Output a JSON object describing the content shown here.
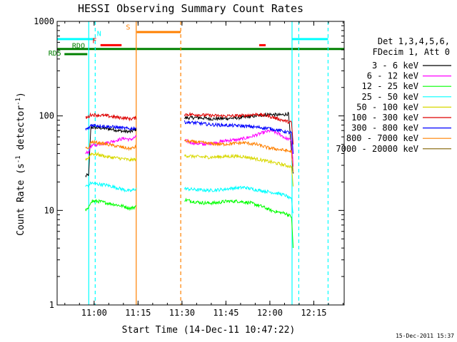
{
  "chart_data": {
    "type": "line",
    "title": "HESSI Observing Summary Count Rates",
    "xlabel": "Start Time (14-Dec-11 10:47:22)",
    "ylabel_main": "Count Rate (s",
    "ylabel_sup": "-1",
    "ylabel_mid": " detector",
    "ylabel_end": ")",
    "footer": "15-Dec-2011 15:37",
    "x_unit": "minutes after 10:47:22",
    "xlim": [
      0,
      98
    ],
    "ylim": [
      1,
      1000
    ],
    "yscale": "log",
    "x_ticks": [
      {
        "label": "11:00",
        "x": 12.63
      },
      {
        "label": "11:15",
        "x": 27.63
      },
      {
        "label": "11:30",
        "x": 42.63
      },
      {
        "label": "11:45",
        "x": 57.63
      },
      {
        "label": "12:00",
        "x": 72.63
      },
      {
        "label": "12:15",
        "x": 87.63
      }
    ],
    "y_ticks": [
      {
        "label": "1",
        "y": 1
      },
      {
        "label": "10",
        "y": 10
      },
      {
        "label": "100",
        "y": 100
      },
      {
        "label": "1000",
        "y": 1000
      }
    ],
    "legend": {
      "position": "right",
      "header": [
        "Det 1,3,4,5,6,",
        "FDecim 1, Att 0"
      ],
      "entries": [
        {
          "label": "3 - 6 keV",
          "color": "#000000"
        },
        {
          "label": "6 - 12 keV",
          "color": "#ff00ff"
        },
        {
          "label": "12 - 25 keV",
          "color": "#00ff00"
        },
        {
          "label": "25 - 50 keV",
          "color": "#00ffff"
        },
        {
          "label": "50 - 100 keV",
          "color": "#d8d800"
        },
        {
          "label": "100 - 300 keV",
          "color": "#dd0000"
        },
        {
          "label": "300 - 800 keV",
          "color": "#0000ff"
        },
        {
          "label": "800 - 7000 keV",
          "color": "#ff8000"
        },
        {
          "label": "7000 - 20000 keV",
          "color": "#806000"
        }
      ]
    },
    "segments": [
      [
        9.7,
        27.0
      ],
      [
        43.5,
        80.6
      ]
    ],
    "series": [
      {
        "name": "3 - 6 keV",
        "color": "#000000",
        "points": [
          [
            9.7,
            23
          ],
          [
            10.8,
            24
          ],
          [
            11.5,
            76
          ],
          [
            13,
            75
          ],
          [
            16,
            74
          ],
          [
            19,
            72
          ],
          [
            22,
            69
          ],
          [
            25,
            68
          ],
          [
            27,
            72
          ],
          [
            43.5,
            95
          ],
          [
            48,
            96
          ],
          [
            53,
            93
          ],
          [
            58,
            94
          ],
          [
            63,
            96
          ],
          [
            68,
            100
          ],
          [
            72,
            104
          ],
          [
            76,
            102
          ],
          [
            79,
            105
          ],
          [
            80.6,
            24
          ]
        ]
      },
      {
        "name": "6 - 12 keV",
        "color": "#ff00ff",
        "points": [
          [
            9.7,
            40
          ],
          [
            10.8,
            42
          ],
          [
            11.5,
            48
          ],
          [
            14,
            50
          ],
          [
            17,
            52
          ],
          [
            20,
            55
          ],
          [
            23,
            58
          ],
          [
            25,
            56
          ],
          [
            27,
            60
          ],
          [
            43.5,
            55
          ],
          [
            46,
            52
          ],
          [
            50,
            50
          ],
          [
            54,
            52
          ],
          [
            58,
            55
          ],
          [
            62,
            56
          ],
          [
            66,
            60
          ],
          [
            70,
            66
          ],
          [
            73,
            70
          ],
          [
            76,
            64
          ],
          [
            78,
            58
          ],
          [
            80,
            55
          ],
          [
            80.6,
            30
          ]
        ]
      },
      {
        "name": "12 - 25 keV",
        "color": "#00ff00",
        "points": [
          [
            9.7,
            10
          ],
          [
            10.8,
            10.5
          ],
          [
            11.5,
            12.5
          ],
          [
            14,
            12.5
          ],
          [
            17,
            12
          ],
          [
            20,
            11.5
          ],
          [
            23,
            11
          ],
          [
            25,
            10.5
          ],
          [
            27,
            11
          ],
          [
            43.5,
            13
          ],
          [
            46,
            12.5
          ],
          [
            50,
            12
          ],
          [
            54,
            12
          ],
          [
            58,
            12.5
          ],
          [
            62,
            12.5
          ],
          [
            66,
            12
          ],
          [
            70,
            11
          ],
          [
            73,
            10
          ],
          [
            76,
            9.5
          ],
          [
            78,
            9.3
          ],
          [
            80,
            8.6
          ],
          [
            80.6,
            4
          ]
        ]
      },
      {
        "name": "25 - 50 keV",
        "color": "#00ffff",
        "points": [
          [
            9.7,
            18
          ],
          [
            10.8,
            18.5
          ],
          [
            11.5,
            19.5
          ],
          [
            14,
            19
          ],
          [
            17,
            18.5
          ],
          [
            20,
            17.5
          ],
          [
            23,
            16.5
          ],
          [
            25,
            16
          ],
          [
            27,
            17
          ],
          [
            43.5,
            17
          ],
          [
            48,
            16.5
          ],
          [
            52,
            16.3
          ],
          [
            56,
            16.6
          ],
          [
            60,
            17.2
          ],
          [
            64,
            17.5
          ],
          [
            68,
            16.5
          ],
          [
            72,
            15.8
          ],
          [
            76,
            15
          ],
          [
            78,
            14.4
          ],
          [
            80,
            13
          ],
          [
            80.6,
            9
          ]
        ]
      },
      {
        "name": "50 - 100 keV",
        "color": "#d8d800",
        "points": [
          [
            9.7,
            35
          ],
          [
            10.8,
            36
          ],
          [
            11.5,
            40
          ],
          [
            14,
            39
          ],
          [
            17,
            37
          ],
          [
            20,
            36
          ],
          [
            23,
            35
          ],
          [
            25,
            34
          ],
          [
            27,
            35
          ],
          [
            43.5,
            38
          ],
          [
            48,
            37
          ],
          [
            52,
            36.5
          ],
          [
            56,
            37
          ],
          [
            60,
            37.5
          ],
          [
            64,
            37
          ],
          [
            68,
            35
          ],
          [
            72,
            33
          ],
          [
            76,
            31
          ],
          [
            78,
            30
          ],
          [
            80,
            29
          ],
          [
            80.6,
            18
          ]
        ]
      },
      {
        "name": "100 - 300 keV",
        "color": "#dd0000",
        "points": [
          [
            9.7,
            95
          ],
          [
            10.8,
            98
          ],
          [
            11.5,
            103
          ],
          [
            14,
            102
          ],
          [
            17,
            100
          ],
          [
            20,
            97
          ],
          [
            23,
            95
          ],
          [
            25,
            93
          ],
          [
            27,
            95
          ],
          [
            43.5,
            104
          ],
          [
            48,
            103
          ],
          [
            52,
            101
          ],
          [
            56,
            100
          ],
          [
            60,
            100
          ],
          [
            64,
            101
          ],
          [
            68,
            104
          ],
          [
            72,
            100
          ],
          [
            76,
            92
          ],
          [
            78,
            88
          ],
          [
            80,
            85
          ],
          [
            80.6,
            50
          ]
        ]
      },
      {
        "name": "300 - 800 keV",
        "color": "#0000ff",
        "points": [
          [
            9.7,
            72
          ],
          [
            10.8,
            74
          ],
          [
            11.5,
            80
          ],
          [
            14,
            79
          ],
          [
            17,
            77
          ],
          [
            20,
            76
          ],
          [
            23,
            74
          ],
          [
            25,
            73
          ],
          [
            27,
            75
          ],
          [
            43.5,
            86
          ],
          [
            48,
            84
          ],
          [
            52,
            81
          ],
          [
            56,
            80
          ],
          [
            60,
            79
          ],
          [
            64,
            78
          ],
          [
            68,
            76
          ],
          [
            72,
            74
          ],
          [
            76,
            70
          ],
          [
            78,
            68
          ],
          [
            80,
            66
          ],
          [
            80.6,
            40
          ]
        ]
      },
      {
        "name": "800 - 7000 keV",
        "color": "#ff8000",
        "points": [
          [
            9.7,
            45
          ],
          [
            10.8,
            46
          ],
          [
            11.5,
            53
          ],
          [
            14,
            52
          ],
          [
            17,
            50
          ],
          [
            20,
            48
          ],
          [
            23,
            46
          ],
          [
            25,
            45
          ],
          [
            27,
            47
          ],
          [
            43.5,
            54
          ],
          [
            48,
            53
          ],
          [
            52,
            51
          ],
          [
            56,
            50
          ],
          [
            60,
            51
          ],
          [
            64,
            52
          ],
          [
            68,
            50
          ],
          [
            72,
            46
          ],
          [
            76,
            44
          ],
          [
            78,
            43
          ],
          [
            80,
            42
          ],
          [
            80.6,
            25
          ]
        ]
      },
      {
        "name": "7000 - 20000 keV",
        "color": "#806000",
        "points": [
          [
            9.7,
            1.0
          ],
          [
            10.8,
            1.0
          ],
          [
            11.5,
            1.0
          ],
          [
            14,
            1.0
          ],
          [
            20,
            1.0
          ],
          [
            27,
            1.0
          ],
          [
            43.5,
            1.0
          ],
          [
            80.6,
            1.0
          ]
        ]
      }
    ],
    "vlines": [
      {
        "x": 10.8,
        "color": "#00ffff",
        "style": "solid"
      },
      {
        "x": 13.0,
        "color": "#00ffff",
        "style": "dashed"
      },
      {
        "x": 27.0,
        "color": "#ff8000",
        "style": "solid"
      },
      {
        "x": 42.2,
        "color": "#ff8000",
        "style": "dashed"
      },
      {
        "x": 80.2,
        "color": "#00ffff",
        "style": "solid"
      },
      {
        "x": 82.5,
        "color": "#00ffff",
        "style": "dashed"
      },
      {
        "x": 92.5,
        "color": "#00ffff",
        "style": "dashed"
      }
    ],
    "flags": [
      {
        "label": "N",
        "color": "#00ffff",
        "y": 650,
        "bars": [
          [
            0,
            12.8
          ],
          [
            80.2,
            92.5
          ]
        ],
        "label_x": 13.6,
        "label_y": 700
      },
      {
        "label": "S",
        "color": "#ff8000",
        "y": 770,
        "bars": [
          [
            27.2,
            42.2
          ]
        ],
        "label_x": 23.5,
        "label_y": 820
      },
      {
        "label": "F",
        "color": "#ff0000",
        "y": 560,
        "bars": [
          [
            14.8,
            22.0
          ],
          [
            69.0,
            71.2
          ]
        ],
        "label_x": 12.0,
        "label_y": 590
      },
      {
        "label": "RDO",
        "color": "#008000",
        "y": 510,
        "bars": [
          [
            0,
            98
          ]
        ],
        "label_x": 5.1,
        "label_y": 520
      },
      {
        "label": "RD5",
        "color": "#008000",
        "y": 450,
        "bars": [
          [
            2.5,
            10.3
          ]
        ],
        "label_x": -3.0,
        "label_y": 435
      }
    ]
  }
}
